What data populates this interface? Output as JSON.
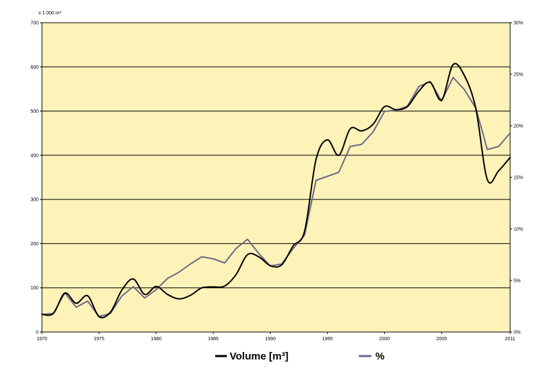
{
  "chart_data": {
    "type": "line",
    "y_unit_label": "x 1 000 m³",
    "x": [
      1970,
      1971,
      1972,
      1973,
      1974,
      1975,
      1976,
      1977,
      1978,
      1979,
      1980,
      1981,
      1982,
      1983,
      1984,
      1985,
      1986,
      1987,
      1988,
      1989,
      1990,
      1991,
      1992,
      1993,
      1994,
      1995,
      1996,
      1997,
      1998,
      1999,
      2000,
      2001,
      2002,
      2003,
      2004,
      2005,
      2006,
      2007,
      2008,
      2009,
      2010,
      2011
    ],
    "x_ticks": [
      1970,
      1975,
      1980,
      1985,
      1990,
      1995,
      2000,
      2005,
      2011
    ],
    "y_ticks": [
      0,
      100,
      200,
      300,
      400,
      500,
      600,
      700
    ],
    "y2_ticks": [
      "0%",
      "5%",
      "10%",
      "15%",
      "20%",
      "25%",
      "30%"
    ],
    "ylim": [
      0,
      700
    ],
    "y2lim": [
      0,
      30
    ],
    "series": [
      {
        "name": "Volume [m³]",
        "axis": "left",
        "color": "#000000",
        "values": [
          40,
          42,
          88,
          65,
          82,
          35,
          45,
          95,
          120,
          85,
          103,
          85,
          75,
          83,
          100,
          102,
          104,
          130,
          175,
          170,
          150,
          152,
          195,
          228,
          390,
          435,
          400,
          460,
          455,
          470,
          510,
          503,
          510,
          545,
          565,
          525,
          605,
          580,
          505,
          345,
          365,
          395
        ]
      },
      {
        "name": "%",
        "axis": "right",
        "color": "#6B6888",
        "values": [
          1.7,
          1.8,
          3.8,
          2.4,
          3.0,
          1.5,
          1.8,
          3.5,
          4.4,
          3.3,
          4.1,
          5.2,
          5.8,
          6.6,
          7.3,
          7.1,
          6.7,
          8.1,
          9.0,
          7.6,
          6.4,
          6.6,
          8.1,
          9.4,
          14.7,
          15.1,
          15.5,
          18.0,
          18.2,
          19.4,
          21.4,
          21.5,
          21.9,
          23.8,
          24.3,
          22.4,
          24.7,
          23.5,
          21.7,
          17.7,
          18.0,
          19.3
        ]
      }
    ],
    "legend_position": "bottom",
    "grid": true,
    "background": "#FDF2B8"
  }
}
